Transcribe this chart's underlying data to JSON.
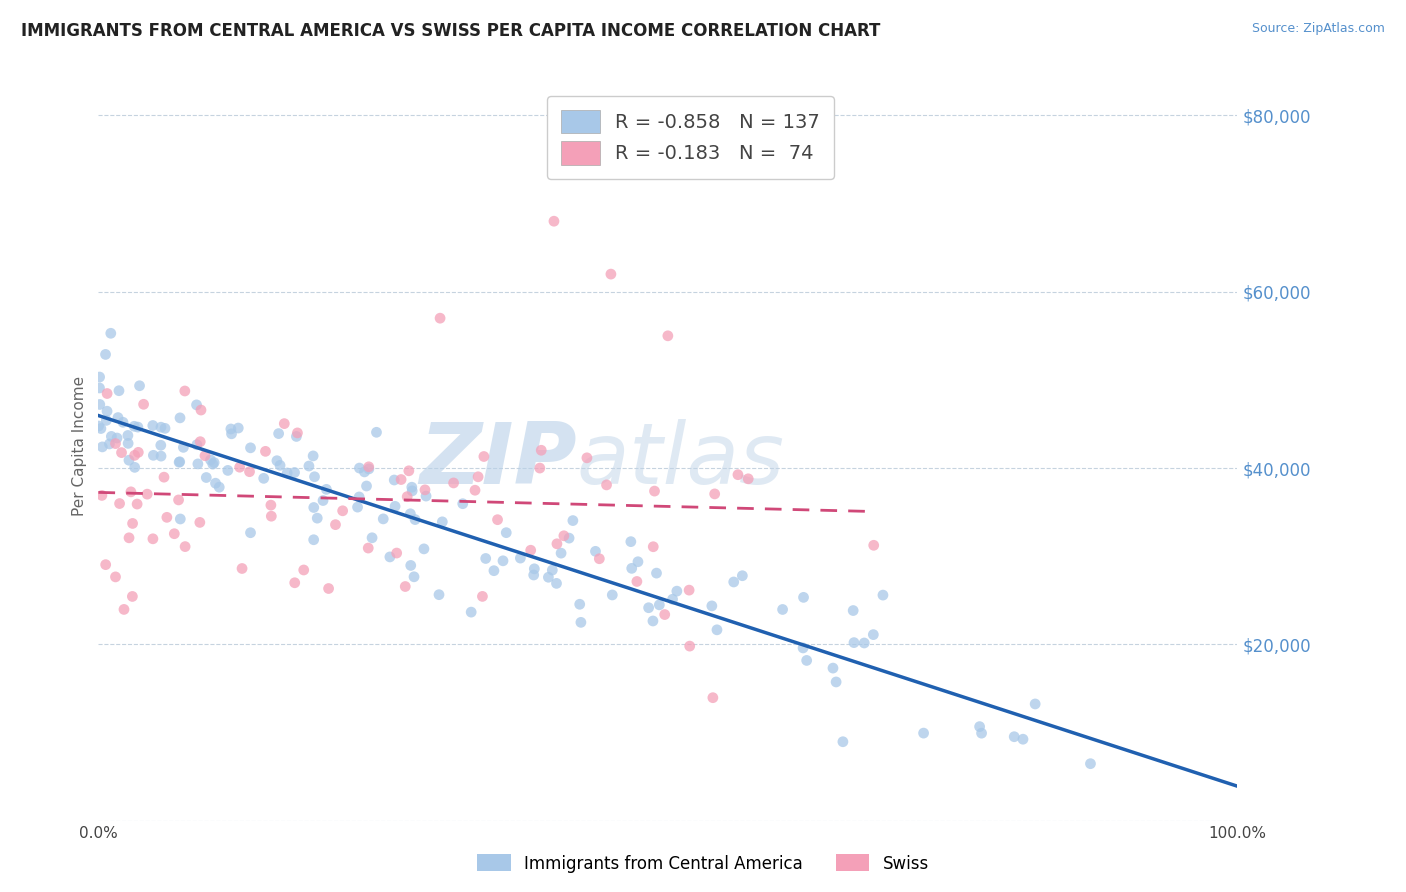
{
  "title": "IMMIGRANTS FROM CENTRAL AMERICA VS SWISS PER CAPITA INCOME CORRELATION CHART",
  "source": "Source: ZipAtlas.com",
  "ylabel": "Per Capita Income",
  "watermark_zip": "ZIP",
  "watermark_atlas": "atlas",
  "legend_blue_r": "-0.858",
  "legend_blue_n": "137",
  "legend_pink_r": "-0.183",
  "legend_pink_n": " 74",
  "legend_label_blue": "Immigrants from Central America",
  "legend_label_pink": "Swiss",
  "xlim": [
    0,
    100
  ],
  "ylim": [
    0,
    85000
  ],
  "yticks": [
    0,
    20000,
    40000,
    60000,
    80000
  ],
  "blue_color": "#a8c8e8",
  "pink_color": "#f4a0b8",
  "line_blue_color": "#2060b0",
  "line_pink_color": "#d04878",
  "background_color": "#ffffff",
  "grid_color": "#b8c8d8",
  "title_color": "#222222",
  "axis_label_color": "#666666",
  "tick_color_y": "#5590cc",
  "tick_color_x": "#444444",
  "blue_seed": 42,
  "pink_seed": 123,
  "blue_r": -0.858,
  "pink_r": -0.183,
  "blue_n": 137,
  "pink_n": 74
}
